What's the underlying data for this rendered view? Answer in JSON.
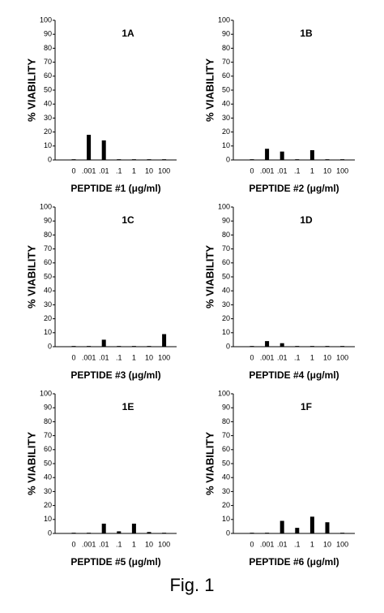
{
  "chart_data": [
    {
      "type": "bar",
      "title": "1A",
      "y_label": "% VIABILITY",
      "x_label": "PEPTIDE #1 (μg/ml)",
      "categories": [
        "0",
        ".001",
        ".01",
        ".1",
        "1",
        "10",
        "100"
      ],
      "values": [
        0.5,
        18,
        14,
        0.5,
        0.5,
        0.5,
        0.5
      ],
      "color": "#000000",
      "ylim": [
        0,
        100
      ],
      "yticks": [
        0,
        10,
        20,
        30,
        40,
        50,
        60,
        70,
        80,
        90,
        100
      ]
    },
    {
      "type": "bar",
      "title": "1B",
      "y_label": "% VIABILITY",
      "x_label": "PEPTIDE #2 (μg/ml)",
      "categories": [
        "0",
        ".001",
        ".01",
        ".1",
        "1",
        "10",
        "100"
      ],
      "values": [
        0.5,
        8,
        6,
        0.5,
        7,
        0.5,
        0.5
      ],
      "color": "#000000",
      "ylim": [
        0,
        100
      ],
      "yticks": [
        0,
        10,
        20,
        30,
        40,
        50,
        60,
        70,
        80,
        90,
        100
      ]
    },
    {
      "type": "bar",
      "title": "1C",
      "y_label": "% VIABILITY",
      "x_label": "PEPTIDE #3 (μg/ml)",
      "categories": [
        "0",
        ".001",
        ".01",
        ".1",
        "1",
        "10",
        "100"
      ],
      "values": [
        0.5,
        0.5,
        5,
        0.5,
        0.5,
        0.5,
        9
      ],
      "color": "#000000",
      "ylim": [
        0,
        100
      ],
      "yticks": [
        0,
        10,
        20,
        30,
        40,
        50,
        60,
        70,
        80,
        90,
        100
      ]
    },
    {
      "type": "bar",
      "title": "1D",
      "y_label": "% VIABILITY",
      "x_label": "PEPTIDE #4 (μg/ml)",
      "categories": [
        "0",
        ".001",
        ".01",
        ".1",
        "1",
        "10",
        "100"
      ],
      "values": [
        0.5,
        4,
        2.5,
        0.5,
        0.5,
        0.5,
        0.5
      ],
      "color": "#000000",
      "ylim": [
        0,
        100
      ],
      "yticks": [
        0,
        10,
        20,
        30,
        40,
        50,
        60,
        70,
        80,
        90,
        100
      ]
    },
    {
      "type": "bar",
      "title": "1E",
      "y_label": "% VIABILITY",
      "x_label": "PEPTIDE #5 (μg/ml)",
      "categories": [
        "0",
        ".001",
        ".01",
        ".1",
        "1",
        "10",
        "100"
      ],
      "values": [
        0.5,
        0.5,
        7,
        1.5,
        7,
        1,
        0.5
      ],
      "color": "#000000",
      "ylim": [
        0,
        100
      ],
      "yticks": [
        0,
        10,
        20,
        30,
        40,
        50,
        60,
        70,
        80,
        90,
        100
      ]
    },
    {
      "type": "bar",
      "title": "1F",
      "y_label": "% VIABILITY",
      "x_label": "PEPTIDE #6 (μg/ml)",
      "categories": [
        "0",
        ".001",
        ".01",
        ".1",
        "1",
        "10",
        "100"
      ],
      "values": [
        0.5,
        0.5,
        9,
        4,
        12,
        8,
        0.5
      ],
      "color": "#000000",
      "ylim": [
        0,
        100
      ],
      "yticks": [
        0,
        10,
        20,
        30,
        40,
        50,
        60,
        70,
        80,
        90,
        100
      ]
    }
  ],
  "caption": "Fig. 1"
}
